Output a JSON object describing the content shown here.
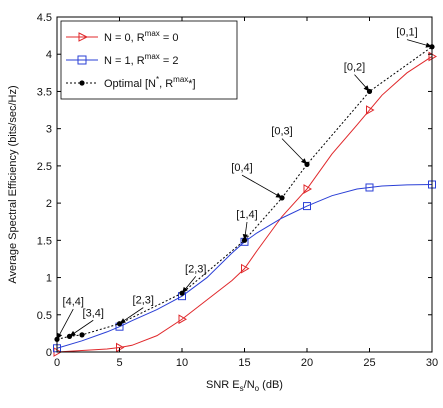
{
  "chart_data": {
    "type": "line",
    "xlabel": {
      "prefix": "SNR E",
      "sub1": "s",
      "mid": "/N",
      "sub2": "o",
      "suffix": " (dB)"
    },
    "ylabel": "Average Spectral Efficiency (bits/sec/Hz)",
    "xlim": [
      0,
      30
    ],
    "ylim": [
      0,
      4.5
    ],
    "xticks": [
      "0",
      "5",
      "10",
      "15",
      "20",
      "25",
      "30"
    ],
    "yticks": [
      "0",
      "0.5",
      "1",
      "1.5",
      "2",
      "2.5",
      "3",
      "3.5",
      "4",
      "4.5"
    ],
    "legend_position": "top-left",
    "series": [
      {
        "name": "N = 0, R^max = 0",
        "legend": {
          "a": "N = 0, R",
          "sup": "max",
          "b": " = 0"
        },
        "color": "#e0282b",
        "marker": "triangle-right",
        "x": [
          0,
          2,
          4,
          5,
          6,
          8,
          10,
          12,
          14,
          15,
          16,
          18,
          20,
          22,
          24,
          25,
          26,
          28,
          30
        ],
        "y": [
          0.0,
          0.02,
          0.04,
          0.06,
          0.09,
          0.22,
          0.44,
          0.7,
          0.96,
          1.12,
          1.36,
          1.82,
          2.19,
          2.66,
          3.05,
          3.25,
          3.45,
          3.75,
          3.97
        ],
        "marker_x": [
          0,
          5,
          10,
          15,
          20,
          25,
          30
        ],
        "marker_y": [
          0.0,
          0.06,
          0.44,
          1.12,
          2.19,
          3.25,
          3.97
        ]
      },
      {
        "name": "N = 1, R^max = 2",
        "legend": {
          "a": "N = 1, R",
          "sup": "max",
          "b": " = 2"
        },
        "color": "#2a3fd6",
        "marker": "square",
        "x": [
          0,
          2,
          4,
          5,
          6,
          8,
          10,
          12,
          14,
          15,
          16,
          18,
          20,
          22,
          24,
          25,
          26,
          28,
          30
        ],
        "y": [
          0.05,
          0.15,
          0.27,
          0.34,
          0.42,
          0.57,
          0.75,
          1.0,
          1.33,
          1.48,
          1.6,
          1.8,
          1.96,
          2.1,
          2.19,
          2.21,
          2.23,
          2.245,
          2.25
        ],
        "marker_x": [
          0,
          5,
          10,
          15,
          20,
          25,
          30
        ],
        "marker_y": [
          0.05,
          0.34,
          0.75,
          1.48,
          1.96,
          2.21,
          2.25
        ]
      },
      {
        "name": "Optimal [N*, R^max*]",
        "legend": {
          "a": "Optimal [N",
          "sup1": "*",
          "mid": ", R",
          "sup2": "max",
          "b": "*]"
        },
        "color": "#000000",
        "marker": "dot",
        "dashed": true,
        "x": [
          0,
          1,
          2,
          5,
          10,
          15,
          18,
          20,
          25,
          30
        ],
        "y": [
          0.17,
          0.21,
          0.23,
          0.38,
          0.79,
          1.5,
          2.07,
          2.52,
          3.5,
          4.1
        ],
        "marker_x": [
          0,
          1,
          2,
          5,
          10,
          15,
          18,
          20,
          25,
          30
        ],
        "marker_y": [
          0.17,
          0.21,
          0.23,
          0.38,
          0.79,
          1.5,
          2.07,
          2.52,
          3.5,
          4.1
        ]
      }
    ],
    "annotations": [
      {
        "text": "[4,4]",
        "x": 0,
        "y": 0.17,
        "tx": 1.3,
        "ty": 0.63
      },
      {
        "text": "[3,4]",
        "x": 1,
        "y": 0.21,
        "tx": 2.9,
        "ty": 0.48
      },
      {
        "text": "[2,3]",
        "x": 5,
        "y": 0.38,
        "tx": 6.9,
        "ty": 0.65
      },
      {
        "text": "[2,3]",
        "x": 10,
        "y": 0.79,
        "tx": 11.1,
        "ty": 1.07
      },
      {
        "text": "[1,4]",
        "x": 15,
        "y": 1.5,
        "tx": 15.2,
        "ty": 1.8
      },
      {
        "text": "[0,4]",
        "x": 18,
        "y": 2.07,
        "tx": 14.8,
        "ty": 2.43
      },
      {
        "text": "[0,3]",
        "x": 20,
        "y": 2.52,
        "tx": 18.0,
        "ty": 2.92
      },
      {
        "text": "[0,2]",
        "x": 25,
        "y": 3.5,
        "tx": 23.8,
        "ty": 3.78
      },
      {
        "text": "[0,1]",
        "x": 30,
        "y": 4.1,
        "tx": 28.0,
        "ty": 4.25
      }
    ]
  }
}
